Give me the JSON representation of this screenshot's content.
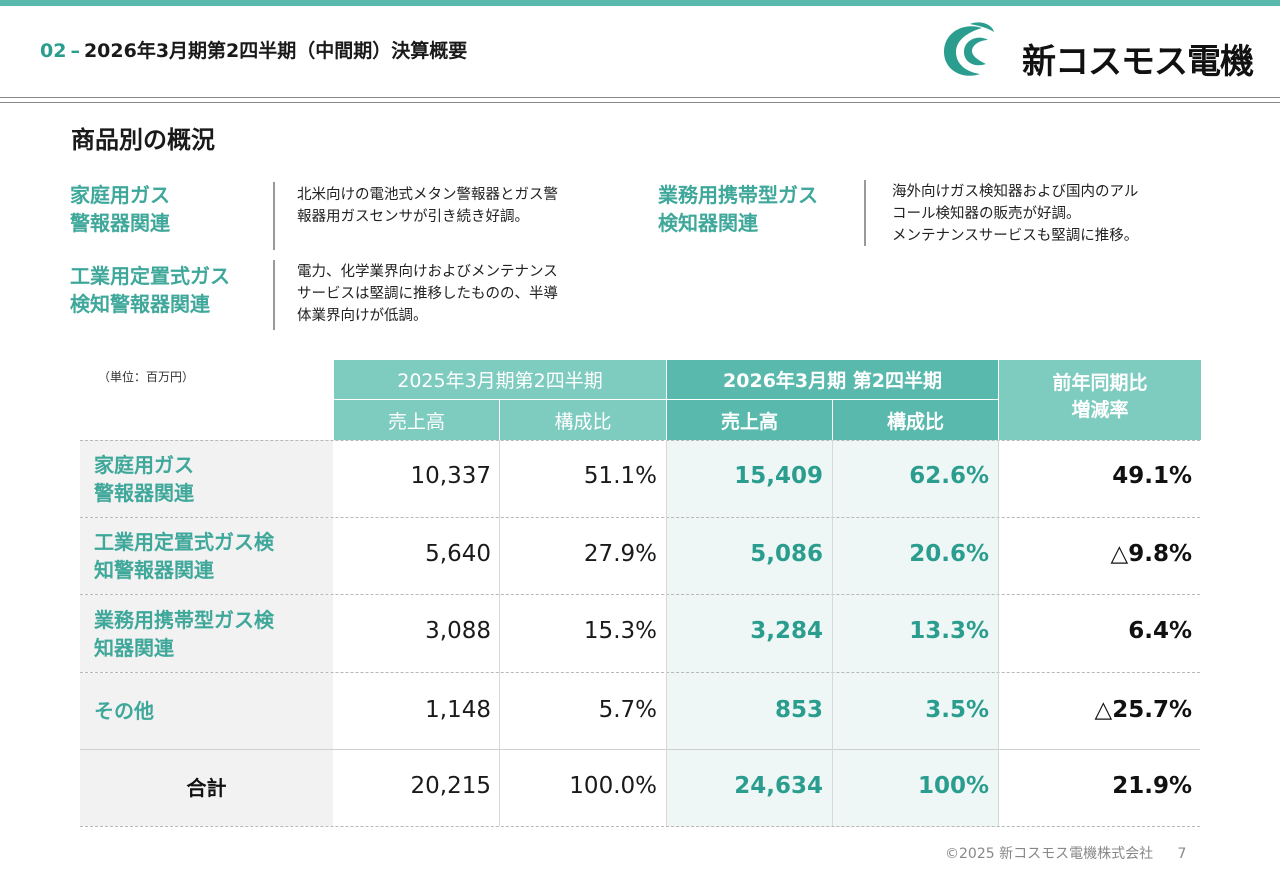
{
  "header": {
    "number": "02",
    "dash": "–",
    "title": "2026年3月期第2四半期（中間期）決算概要",
    "brand": "新コスモス電機"
  },
  "section_title": "商品別の概況",
  "categories": [
    {
      "label_lines": [
        "家庭用ガス",
        "警報器関連"
      ],
      "desc_lines": [
        "北米向けの電池式メタン警報器とガス警",
        "報器用ガスセンサが引き続き好調。"
      ]
    },
    {
      "label_lines": [
        "業務用携帯型ガス",
        "検知器関連"
      ],
      "desc_lines": [
        "海外向けガス検知器および国内のアル",
        "コール検知器の販売が好調。",
        "メンテナンスサービスも堅調に推移。"
      ]
    },
    {
      "label_lines": [
        "工業用定置式ガス",
        "検知警報器関連"
      ],
      "desc_lines": [
        "電力、化学業界向けおよびメンテナンス",
        "サービスは堅調に推移したものの、半導",
        "体業界向けが低調。"
      ]
    }
  ],
  "table": {
    "unit": "（単位：百万円）",
    "period_2025": "2025年3月期第2四半期",
    "period_2026": "2026年3月期 第2四半期",
    "yoy_header_lines": [
      "前年同期比",
      "増減率"
    ],
    "sub_sales": "売上高",
    "sub_ratio": "構成比",
    "rows": [
      {
        "label_lines": [
          "家庭用ガス",
          "警報器関連"
        ],
        "sales_2025": "10,337",
        "ratio_2025": "51.1%",
        "sales_2026": "15,409",
        "ratio_2026": "62.6%",
        "yoy": "49.1%"
      },
      {
        "label_lines": [
          "工業用定置式ガス検",
          "知警報器関連"
        ],
        "sales_2025": "5,640",
        "ratio_2025": "27.9%",
        "sales_2026": "5,086",
        "ratio_2026": "20.6%",
        "yoy": "△9.8%"
      },
      {
        "label_lines": [
          "業務用携帯型ガス検",
          "知器関連"
        ],
        "sales_2025": "3,088",
        "ratio_2025": "15.3%",
        "sales_2026": "3,284",
        "ratio_2026": "13.3%",
        "yoy": "6.4%"
      },
      {
        "label_lines": [
          "その他"
        ],
        "sales_2025": "1,148",
        "ratio_2025": "5.7%",
        "sales_2026": "853",
        "ratio_2026": "3.5%",
        "yoy": "△25.7%"
      },
      {
        "label_lines": [
          "合計"
        ],
        "sales_2025": "20,215",
        "ratio_2025": "100.0%",
        "sales_2026": "24,634",
        "ratio_2026": "100%",
        "yoy": "21.9%"
      }
    ]
  },
  "footer": {
    "copyright": "©2025 新コスモス電機株式会社",
    "page": "7"
  },
  "colors": {
    "accent": "#2a9d8f",
    "header_light": "#7ecbbf",
    "header_dark": "#5ab9ad"
  }
}
